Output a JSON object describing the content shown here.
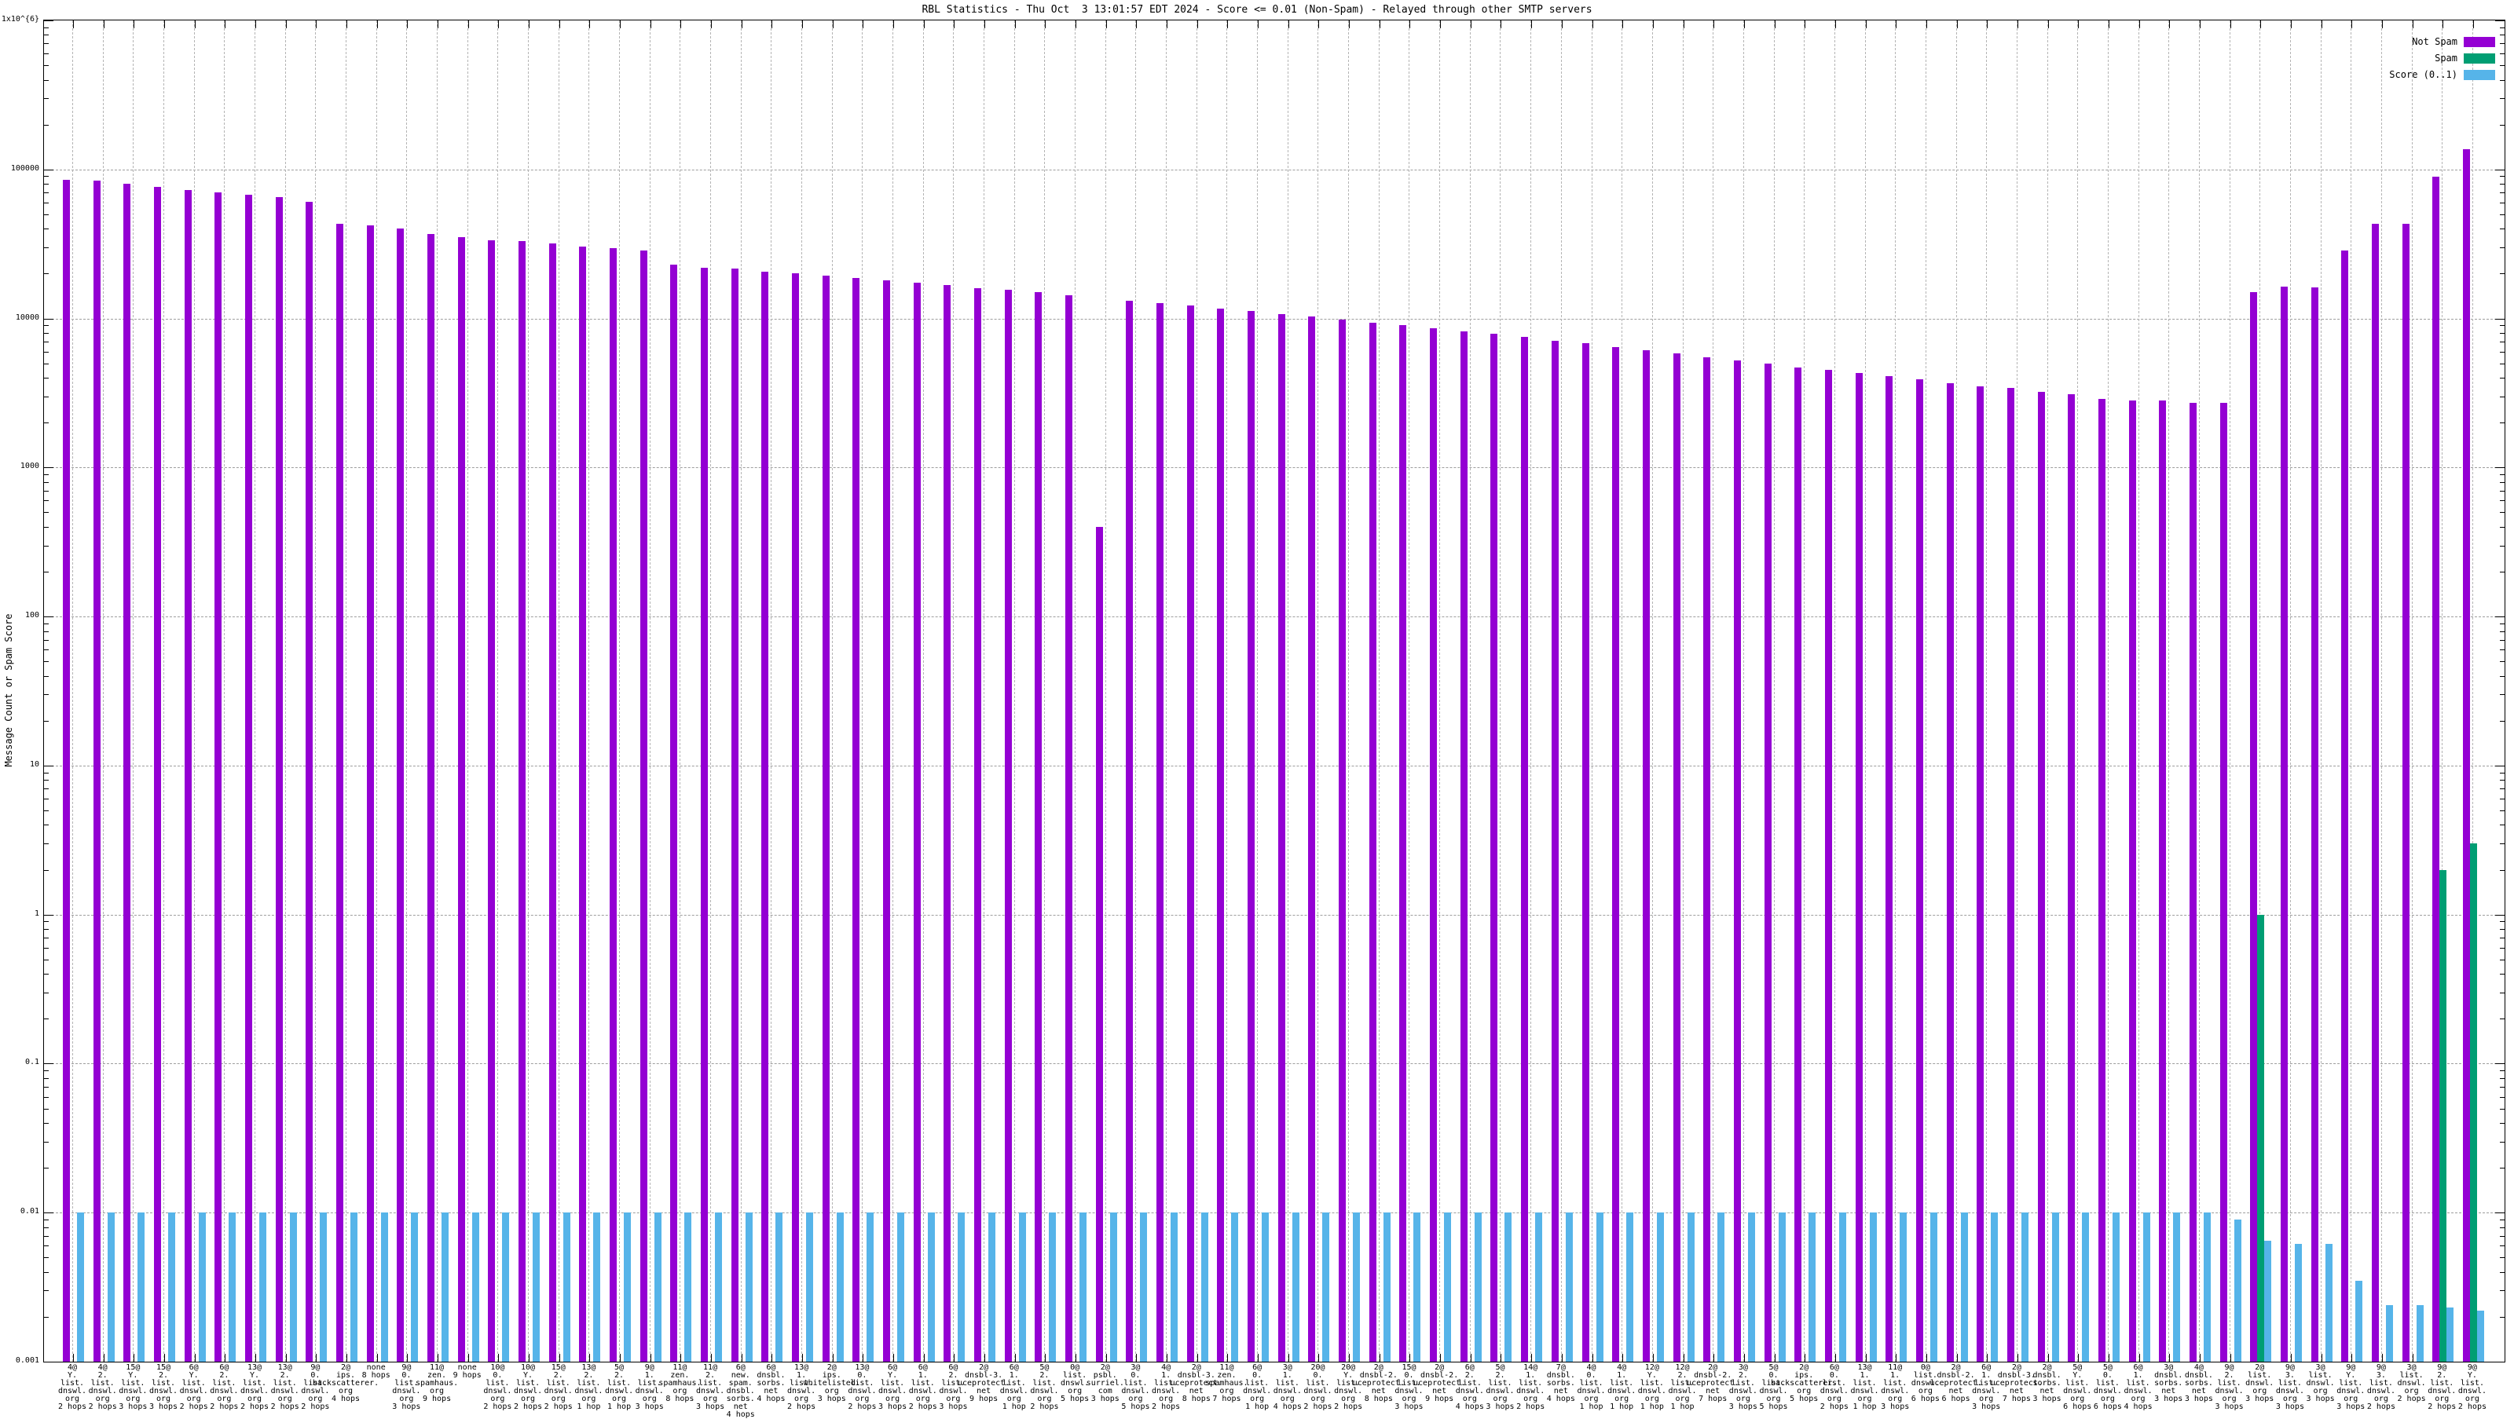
{
  "header": {
    "title": "RBL Statistics - Thu Oct  3 13:01:57 EDT 2024 - Score <= 0.01 (Non-Spam) - Relayed through other SMTP servers"
  },
  "y_axis": {
    "label": "Message Count or Spam Score",
    "scale": "log",
    "range": [
      0.001,
      1000000
    ],
    "tick_labels": [
      "1x10^{6}",
      "100000",
      "10000",
      "1000",
      "100",
      "10",
      "1",
      "0.1",
      "0.01",
      "0.001"
    ]
  },
  "x_axis": {
    "description": "RBL result @ DNS list name, split per dot, with SMTP hop count",
    "group_count": 80
  },
  "legend": {
    "items": [
      {
        "label": "Not Spam",
        "color": "#9400D3"
      },
      {
        "label": "Spam",
        "color": "#009E73"
      },
      {
        "label": "Score (0..1)",
        "color": "#56B4E9"
      }
    ]
  },
  "colors": {
    "not_spam": "#9400D3",
    "spam": "#009E73",
    "score": "#56B4E9",
    "grid": "#9e9e9e",
    "axis": "#000000"
  },
  "chart_data": {
    "type": "bar",
    "log_y": true,
    "ylim": [
      0.001,
      1000000
    ],
    "grid": true,
    "legend_position": "top-right",
    "series_names": [
      "Not Spam",
      "Spam",
      "Score (0..1)"
    ],
    "groups": [
      {
        "rbl": "4@Y.list.dnswl.org",
        "hops": "2 hops",
        "not_spam": 85000,
        "spam": 0,
        "score": 0.01
      },
      {
        "rbl": "4@2.list.dnswl.org",
        "hops": "2 hops",
        "not_spam": 84000,
        "spam": 0,
        "score": 0.01
      },
      {
        "rbl": "15@Y.list.dnswl.org",
        "hops": "3 hops",
        "not_spam": 80000,
        "spam": 0,
        "score": 0.01
      },
      {
        "rbl": "15@2.list.dnswl.org",
        "hops": "3 hops",
        "not_spam": 76000,
        "spam": 0,
        "score": 0.01
      },
      {
        "rbl": "6@Y.list.dnswl.org",
        "hops": "2 hops",
        "not_spam": 73000,
        "spam": 0,
        "score": 0.01
      },
      {
        "rbl": "6@2.list.dnswl.org",
        "hops": "2 hops",
        "not_spam": 70000,
        "spam": 0,
        "score": 0.01
      },
      {
        "rbl": "13@Y.list.dnswl.org",
        "hops": "2 hops",
        "not_spam": 68000,
        "spam": 0,
        "score": 0.01
      },
      {
        "rbl": "13@2.list.dnswl.org",
        "hops": "2 hops",
        "not_spam": 65000,
        "spam": 0,
        "score": 0.01
      },
      {
        "rbl": "9@0.list.dnswl.org",
        "hops": "2 hops",
        "not_spam": 61000,
        "spam": 0,
        "score": 0.01
      },
      {
        "rbl": "2@ips.backscatterer.org",
        "hops": "4 hops",
        "not_spam": 43000,
        "spam": 0,
        "score": 0.01
      },
      {
        "rbl": "none",
        "hops": "8 hops",
        "not_spam": 42000,
        "spam": 0,
        "score": 0.01
      },
      {
        "rbl": "9@0.list.dnswl.org",
        "hops": "3 hops",
        "not_spam": 40000,
        "spam": 0,
        "score": 0.01
      },
      {
        "rbl": "11@zen.spamhaus.org",
        "hops": "9 hops",
        "not_spam": 37000,
        "spam": 0,
        "score": 0.01
      },
      {
        "rbl": "none",
        "hops": "9 hops",
        "not_spam": 35000,
        "spam": 0,
        "score": 0.01
      },
      {
        "rbl": "10@0.list.dnswl.org",
        "hops": "2 hops",
        "not_spam": 33500,
        "spam": 0,
        "score": 0.01
      },
      {
        "rbl": "10@Y.list.dnswl.org",
        "hops": "2 hops",
        "not_spam": 33000,
        "spam": 0,
        "score": 0.01
      },
      {
        "rbl": "15@2.list.dnswl.org",
        "hops": "2 hops",
        "not_spam": 32000,
        "spam": 0,
        "score": 0.01
      },
      {
        "rbl": "13@2.list.dnswl.org",
        "hops": "1 hop",
        "not_spam": 30500,
        "spam": 0,
        "score": 0.01
      },
      {
        "rbl": "5@2.list.dnswl.org",
        "hops": "1 hop",
        "not_spam": 29500,
        "spam": 0,
        "score": 0.01
      },
      {
        "rbl": "9@1.list.dnswl.org",
        "hops": "3 hops",
        "not_spam": 28500,
        "spam": 0,
        "score": 0.01
      },
      {
        "rbl": "11@zen.spamhaus.org",
        "hops": "8 hops",
        "not_spam": 23000,
        "spam": 0,
        "score": 0.01
      },
      {
        "rbl": "11@2.list.dnswl.org",
        "hops": "3 hops",
        "not_spam": 22000,
        "spam": 0,
        "score": 0.01
      },
      {
        "rbl": "6@new.spam.dnsbl.sorbs.net",
        "hops": "4 hops",
        "not_spam": 21500,
        "spam": 0,
        "score": 0.01
      },
      {
        "rbl": "6@dnsbl.sorbs.net",
        "hops": "4 hops",
        "not_spam": 20500,
        "spam": 0,
        "score": 0.01
      },
      {
        "rbl": "13@1.list.dnswl.org",
        "hops": "2 hops",
        "not_spam": 20000,
        "spam": 0,
        "score": 0.01
      },
      {
        "rbl": "2@ips.whitelisted.org",
        "hops": "3 hops",
        "not_spam": 19500,
        "spam": 0,
        "score": 0.01
      },
      {
        "rbl": "13@0.list.dnswl.org",
        "hops": "2 hops",
        "not_spam": 18700,
        "spam": 0,
        "score": 0.01
      },
      {
        "rbl": "6@Y.list.dnswl.org",
        "hops": "3 hops",
        "not_spam": 18000,
        "spam": 0,
        "score": 0.01
      },
      {
        "rbl": "6@1.list.dnswl.org",
        "hops": "2 hops",
        "not_spam": 17300,
        "spam": 0,
        "score": 0.01
      },
      {
        "rbl": "6@2.list.dnswl.org",
        "hops": "3 hops",
        "not_spam": 16700,
        "spam": 0,
        "score": 0.01
      },
      {
        "rbl": "2@dnsbl-3.uceprotect.net",
        "hops": "9 hops",
        "not_spam": 16000,
        "spam": 0,
        "score": 0.01
      },
      {
        "rbl": "6@1.list.dnswl.org",
        "hops": "1 hop",
        "not_spam": 15500,
        "spam": 0,
        "score": 0.01
      },
      {
        "rbl": "5@2.list.dnswl.org",
        "hops": "2 hops",
        "not_spam": 15000,
        "spam": 0,
        "score": 0.01
      },
      {
        "rbl": "0@list.dnswl.org",
        "hops": "5 hops",
        "not_spam": 14400,
        "spam": 0,
        "score": 0.01
      },
      {
        "rbl": "2@psbl.surriel.com",
        "hops": "3 hops",
        "not_spam": 400,
        "spam": 0,
        "score": 0.01
      },
      {
        "rbl": "3@0.list.dnswl.org",
        "hops": "5 hops",
        "not_spam": 13200,
        "spam": 0,
        "score": 0.01
      },
      {
        "rbl": "4@1.list.dnswl.org",
        "hops": "2 hops",
        "not_spam": 12700,
        "spam": 0,
        "score": 0.01
      },
      {
        "rbl": "2@dnsbl-3.uceprotect.net",
        "hops": "8 hops",
        "not_spam": 12200,
        "spam": 0,
        "score": 0.01
      },
      {
        "rbl": "11@zen.spamhaus.org",
        "hops": "7 hops",
        "not_spam": 11700,
        "spam": 0,
        "score": 0.01
      },
      {
        "rbl": "6@0.list.dnswl.org",
        "hops": "1 hop",
        "not_spam": 11200,
        "spam": 0,
        "score": 0.01
      },
      {
        "rbl": "3@1.list.dnswl.org",
        "hops": "4 hops",
        "not_spam": 10700,
        "spam": 0,
        "score": 0.01
      },
      {
        "rbl": "20@0.list.dnswl.org",
        "hops": "2 hops",
        "not_spam": 10300,
        "spam": 0,
        "score": 0.01
      },
      {
        "rbl": "20@Y.list.dnswl.org",
        "hops": "2 hops",
        "not_spam": 9800,
        "spam": 0,
        "score": 0.01
      },
      {
        "rbl": "2@dnsbl-2.uceprotect.net",
        "hops": "8 hops",
        "not_spam": 9400,
        "spam": 0,
        "score": 0.01
      },
      {
        "rbl": "15@0.list.dnswl.org",
        "hops": "3 hops",
        "not_spam": 9000,
        "spam": 0,
        "score": 0.01
      },
      {
        "rbl": "2@dnsbl-2.uceprotect.net",
        "hops": "9 hops",
        "not_spam": 8600,
        "spam": 0,
        "score": 0.01
      },
      {
        "rbl": "6@2.list.dnswl.org",
        "hops": "4 hops",
        "not_spam": 8200,
        "spam": 0,
        "score": 0.01
      },
      {
        "rbl": "5@2.list.dnswl.org",
        "hops": "3 hops",
        "not_spam": 7900,
        "spam": 0,
        "score": 0.01
      },
      {
        "rbl": "14@1.list.dnswl.org",
        "hops": "2 hops",
        "not_spam": 7500,
        "spam": 0,
        "score": 0.01
      },
      {
        "rbl": "7@dnsbl.sorbs.net",
        "hops": "4 hops",
        "not_spam": 7100,
        "spam": 0,
        "score": 0.01
      },
      {
        "rbl": "4@0.list.dnswl.org",
        "hops": "1 hop",
        "not_spam": 6800,
        "spam": 0,
        "score": 0.01
      },
      {
        "rbl": "4@1.list.dnswl.org",
        "hops": "1 hop",
        "not_spam": 6400,
        "spam": 0,
        "score": 0.01
      },
      {
        "rbl": "12@Y.list.dnswl.org",
        "hops": "1 hop",
        "not_spam": 6100,
        "spam": 0,
        "score": 0.01
      },
      {
        "rbl": "12@2.list.dnswl.org",
        "hops": "1 hop",
        "not_spam": 5800,
        "spam": 0,
        "score": 0.01
      },
      {
        "rbl": "2@dnsbl-2.uceprotect.net",
        "hops": "7 hops",
        "not_spam": 5500,
        "spam": 0,
        "score": 0.01
      },
      {
        "rbl": "3@2.list.dnswl.org",
        "hops": "3 hops",
        "not_spam": 5200,
        "spam": 0,
        "score": 0.01
      },
      {
        "rbl": "5@0.list.dnswl.org",
        "hops": "5 hops",
        "not_spam": 5000,
        "spam": 0,
        "score": 0.01
      },
      {
        "rbl": "2@ips.backscatterer.org",
        "hops": "5 hops",
        "not_spam": 4700,
        "spam": 0,
        "score": 0.01
      },
      {
        "rbl": "6@0.list.dnswl.org",
        "hops": "2 hops",
        "not_spam": 4500,
        "spam": 0,
        "score": 0.01
      },
      {
        "rbl": "13@1.list.dnswl.org",
        "hops": "1 hop",
        "not_spam": 4300,
        "spam": 0,
        "score": 0.01
      },
      {
        "rbl": "11@1.list.dnswl.org",
        "hops": "3 hops",
        "not_spam": 4100,
        "spam": 0,
        "score": 0.01
      },
      {
        "rbl": "0@list.dnswl.org",
        "hops": "6 hops",
        "not_spam": 3900,
        "spam": 0,
        "score": 0.01
      },
      {
        "rbl": "2@dnsbl-2.uceprotect.net",
        "hops": "6 hops",
        "not_spam": 3700,
        "spam": 0,
        "score": 0.01
      },
      {
        "rbl": "6@1.list.dnswl.org",
        "hops": "3 hops",
        "not_spam": 3500,
        "spam": 0,
        "score": 0.01
      },
      {
        "rbl": "2@dnsbl-3.uceprotect.net",
        "hops": "7 hops",
        "not_spam": 3400,
        "spam": 0,
        "score": 0.01
      },
      {
        "rbl": "2@dnsbl.sorbs.net",
        "hops": "3 hops",
        "not_spam": 3200,
        "spam": 0,
        "score": 0.01
      },
      {
        "rbl": "5@Y.list.dnswl.org",
        "hops": "6 hops",
        "not_spam": 3100,
        "spam": 0,
        "score": 0.01
      },
      {
        "rbl": "5@0.list.dnswl.org",
        "hops": "6 hops",
        "not_spam": 2900,
        "spam": 0,
        "score": 0.01
      },
      {
        "rbl": "6@1.list.dnswl.org",
        "hops": "4 hops",
        "not_spam": 2800,
        "spam": 0,
        "score": 0.01
      },
      {
        "rbl": "3@dnsbl.sorbs.net",
        "hops": "3 hops",
        "not_spam": 2800,
        "spam": 0,
        "score": 0.01
      },
      {
        "rbl": "4@dnsbl.sorbs.net",
        "hops": "3 hops",
        "not_spam": 2700,
        "spam": 0,
        "score": 0.01
      },
      {
        "rbl": "9@2.list.dnswl.org",
        "hops": "3 hops",
        "not_spam": 2700,
        "spam": 0,
        "score": 0.009
      },
      {
        "rbl": "2@list.dnswl.org",
        "hops": "3 hops",
        "not_spam": 15000,
        "spam": 1,
        "score": 0.0065
      },
      {
        "rbl": "9@3.list.dnswl.org",
        "hops": "3 hops",
        "not_spam": 16400,
        "spam": 0,
        "score": 0.0062
      },
      {
        "rbl": "3@list.dnswl.org",
        "hops": "3 hops",
        "not_spam": 16200,
        "spam": 0,
        "score": 0.0062
      },
      {
        "rbl": "9@Y.list.dnswl.org",
        "hops": "3 hops",
        "not_spam": 28600,
        "spam": 0,
        "score": 0.0035
      },
      {
        "rbl": "9@3.list.dnswl.org",
        "hops": "2 hops",
        "not_spam": 43000,
        "spam": 0,
        "score": 0.0024
      },
      {
        "rbl": "3@list.dnswl.org",
        "hops": "2 hops",
        "not_spam": 43300,
        "spam": 0,
        "score": 0.0024
      },
      {
        "rbl": "9@2.list.dnswl.org",
        "hops": "2 hops",
        "not_spam": 89600,
        "spam": 2,
        "score": 0.0023
      },
      {
        "rbl": "9@Y.list.dnswl.org",
        "hops": "2 hops",
        "not_spam": 137000,
        "spam": 3,
        "score": 0.0022
      }
    ]
  }
}
